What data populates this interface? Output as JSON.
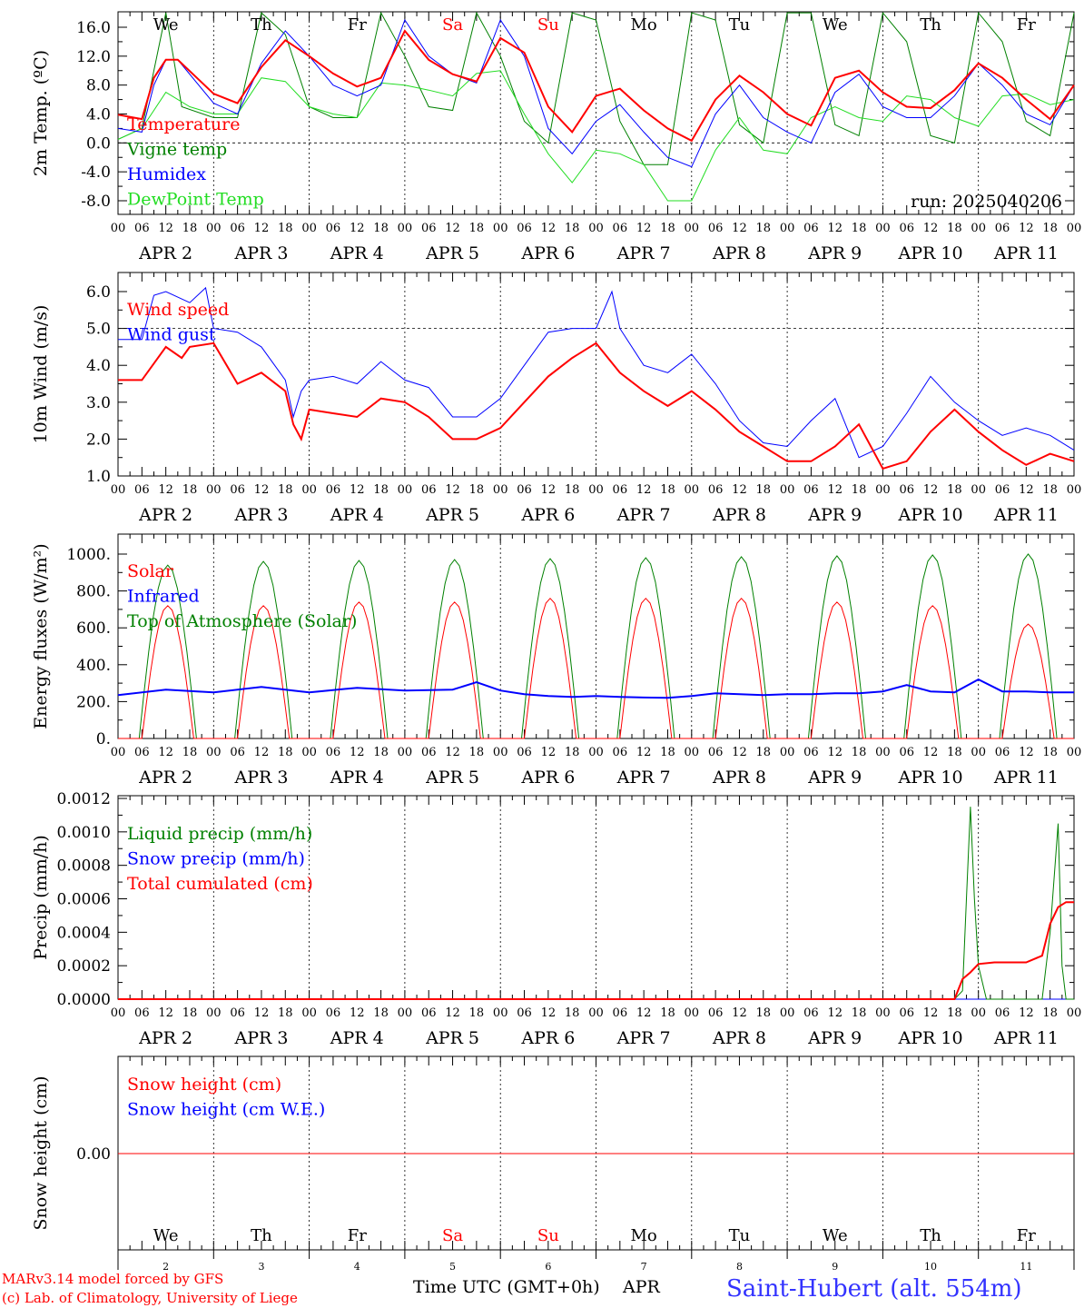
{
  "days": {
    "hour_ticks": [
      "00",
      "06",
      "12",
      "18"
    ],
    "final_tick": "00",
    "dates": [
      "APR  2",
      "APR  3",
      "APR  4",
      "APR  5",
      "APR  6",
      "APR  7",
      "APR  8",
      "APR  9",
      "APR 10",
      "APR 11"
    ],
    "weekdays": [
      "We",
      "Th",
      "Fr",
      "Sa",
      "Su",
      "Mo",
      "Tu",
      "We",
      "Th",
      "Fr"
    ],
    "weekend_flags": [
      false,
      false,
      false,
      true,
      true,
      false,
      false,
      false,
      false,
      false
    ],
    "day_numbers": [
      "2",
      "3",
      "4",
      "5",
      "6",
      "7",
      "8",
      "9",
      "10",
      "11"
    ]
  },
  "colors": {
    "red": "#ff0000",
    "green": "#008000",
    "blue": "#0000ff",
    "lightgreen": "#22dd22",
    "credit": "#ff0000",
    "station": "#3333ff"
  },
  "footer": {
    "credit_line1": "MARv3.14 model forced by GFS",
    "credit_line2": "(c) Lab. of Climatology, University of Liege",
    "xlabel": "Time UTC (GMT+0h)",
    "month": "APR",
    "station": "Saint-Hubert (alt. 554m)"
  },
  "chart_data": [
    {
      "type": "line",
      "id": "temp",
      "ylabel": "2m Temp. (ºC)",
      "ylim": [
        -11,
        18
      ],
      "yticks": [
        "16.0",
        "12.0",
        "8.0",
        "4.0",
        "0.0",
        "-4.0",
        "-8.0"
      ],
      "ytick_values": [
        16,
        12,
        8,
        4,
        0,
        -4,
        -8
      ],
      "refline": 0,
      "show_weekdays": true,
      "run": "run: 2025040206",
      "x_unit": "hours since APR 2 00 UTC",
      "series": [
        {
          "name": "Temperature",
          "color": "red",
          "width": 2,
          "x": [
            0,
            6,
            9,
            12,
            15,
            24,
            30,
            36,
            42,
            48,
            54,
            60,
            66,
            72,
            78,
            84,
            90,
            96,
            102,
            108,
            114,
            120,
            126,
            132,
            138,
            144,
            150,
            156,
            162,
            168,
            174,
            180,
            186,
            192,
            198,
            204,
            210,
            216,
            222,
            228,
            234,
            240
          ],
          "y": [
            3.9,
            3.3,
            9,
            11.5,
            11.5,
            6.8,
            5.5,
            10.5,
            14.2,
            12,
            9.6,
            7.8,
            9,
            15.5,
            11.5,
            9.5,
            8.5,
            14.5,
            12.5,
            5,
            1.5,
            6.5,
            7.5,
            4.5,
            2,
            0.3,
            6,
            9.3,
            7,
            4,
            2.4,
            9,
            10,
            7,
            5,
            4.8,
            7.3,
            11,
            9,
            6,
            3.3,
            8
          ]
        },
        {
          "name": "Vigne temp",
          "color": "green",
          "width": 1,
          "x": [
            0,
            6,
            12,
            16,
            24,
            30,
            36,
            42,
            48,
            54,
            60,
            66,
            72,
            78,
            84,
            90,
            96,
            102,
            108,
            114,
            120,
            126,
            132,
            138,
            144,
            150,
            156,
            162,
            168,
            174,
            180,
            186,
            192,
            198,
            204,
            210,
            216,
            222,
            228,
            234,
            240
          ],
          "y": [
            0.5,
            2,
            18,
            5,
            3.5,
            3.5,
            18,
            15,
            5,
            3.5,
            3.5,
            18,
            12,
            5,
            4.5,
            18,
            12,
            3,
            0,
            18,
            17,
            3,
            -3,
            -3,
            18,
            17,
            2.5,
            0,
            18,
            18,
            2.5,
            1,
            18,
            14,
            1,
            0,
            18,
            14,
            3,
            1,
            18
          ]
        },
        {
          "name": "Humidex",
          "color": "blue",
          "width": 1,
          "x": [
            0,
            6,
            9,
            12,
            15,
            24,
            30,
            36,
            42,
            48,
            54,
            60,
            66,
            72,
            78,
            84,
            90,
            96,
            102,
            108,
            114,
            120,
            126,
            132,
            138,
            144,
            150,
            156,
            162,
            168,
            174,
            180,
            186,
            192,
            198,
            204,
            210,
            216,
            222,
            228,
            234,
            240
          ],
          "y": [
            2,
            1.5,
            8,
            11.5,
            11.5,
            5.5,
            4,
            11,
            15.5,
            12,
            8,
            6.5,
            8,
            17,
            12,
            9.5,
            8.3,
            17,
            12,
            2,
            -1.5,
            3,
            5.3,
            1.5,
            -2,
            -3.3,
            4,
            8,
            3.5,
            1.5,
            0,
            7,
            9.5,
            5,
            3.5,
            3.5,
            6.5,
            11,
            8,
            4,
            2.5,
            8
          ]
        },
        {
          "name": "DewPoint Temp",
          "color": "lightgreen",
          "width": 1,
          "x": [
            0,
            6,
            12,
            18,
            24,
            30,
            36,
            42,
            48,
            54,
            60,
            66,
            72,
            78,
            84,
            90,
            96,
            102,
            108,
            114,
            120,
            126,
            132,
            138,
            144,
            150,
            156,
            162,
            168,
            174,
            180,
            186,
            192,
            198,
            204,
            210,
            216,
            222,
            228,
            234,
            240
          ],
          "y": [
            0.5,
            2,
            7,
            5,
            4,
            4,
            9,
            8.5,
            5,
            4,
            3.5,
            8.3,
            8,
            7.3,
            6.5,
            9.6,
            10,
            4,
            -1.5,
            -5.5,
            -1,
            -1.5,
            -3,
            -8,
            -8,
            -1,
            3.5,
            -1,
            -1.5,
            3.5,
            5,
            3.5,
            3,
            6.5,
            6,
            3.5,
            2.3,
            6.5,
            6.8,
            5.3,
            6
          ]
        }
      ]
    },
    {
      "type": "line",
      "id": "wind",
      "ylabel": "10m Wind (m/s)",
      "ylim": [
        1.0,
        6.5
      ],
      "yticks": [
        "6.0",
        "5.0",
        "4.0",
        "3.0",
        "2.0",
        "1.0"
      ],
      "ytick_values": [
        6,
        5,
        4,
        3,
        2,
        1
      ],
      "refline": 5,
      "show_weekdays": false,
      "series": [
        {
          "name": "Wind speed",
          "color": "red",
          "width": 2,
          "x": [
            0,
            3,
            6,
            12,
            16,
            18,
            24,
            30,
            36,
            42,
            44,
            46,
            48,
            54,
            60,
            66,
            72,
            78,
            84,
            90,
            96,
            102,
            108,
            114,
            120,
            126,
            132,
            138,
            144,
            150,
            156,
            162,
            168,
            174,
            180,
            186,
            192,
            198,
            204,
            210,
            216,
            222,
            228,
            234,
            240
          ],
          "y": [
            3.6,
            3.6,
            3.6,
            4.5,
            4.2,
            4.5,
            4.6,
            3.5,
            3.8,
            3.3,
            2.4,
            2.0,
            2.8,
            2.7,
            2.6,
            3.1,
            3.0,
            2.6,
            2.0,
            2.0,
            2.3,
            3.0,
            3.7,
            4.2,
            4.6,
            3.8,
            3.3,
            2.9,
            3.3,
            2.8,
            2.2,
            1.8,
            1.4,
            1.4,
            1.8,
            2.4,
            1.2,
            1.4,
            2.2,
            2.8,
            2.2,
            1.7,
            1.3,
            1.6,
            1.4
          ]
        },
        {
          "name": "Wind gust",
          "color": "blue",
          "width": 1,
          "x": [
            0,
            6,
            9,
            12,
            18,
            22,
            24,
            30,
            36,
            42,
            44,
            46,
            48,
            54,
            60,
            66,
            72,
            78,
            84,
            90,
            96,
            102,
            108,
            114,
            120,
            124,
            126,
            132,
            138,
            144,
            150,
            156,
            162,
            168,
            174,
            180,
            186,
            192,
            198,
            204,
            210,
            216,
            222,
            228,
            234,
            240
          ],
          "y": [
            4.7,
            4.7,
            5.9,
            6.0,
            5.7,
            6.1,
            5.0,
            4.9,
            4.5,
            3.6,
            2.6,
            3.3,
            3.6,
            3.7,
            3.5,
            4.1,
            3.6,
            3.4,
            2.6,
            2.6,
            3.1,
            4.0,
            4.9,
            5.0,
            5.0,
            6.0,
            5.0,
            4.0,
            3.8,
            4.3,
            3.5,
            2.5,
            1.9,
            1.8,
            2.5,
            3.1,
            1.5,
            1.8,
            2.7,
            3.7,
            3.0,
            2.5,
            2.1,
            2.3,
            2.1,
            1.7
          ]
        }
      ]
    },
    {
      "type": "line",
      "id": "flux",
      "ylabel": "Energy fluxes (W/m²)",
      "ylim": [
        0,
        1100
      ],
      "yticks": [
        "1000.",
        "800.",
        "600.",
        "400.",
        "200.",
        "0."
      ],
      "ytick_values": [
        1000,
        800,
        600,
        400,
        200,
        0
      ],
      "refline": null,
      "show_weekdays": false,
      "toa_peaks": [
        940,
        960,
        965,
        970,
        975,
        980,
        985,
        990,
        995,
        1000
      ],
      "solar_peaks": [
        720,
        720,
        740,
        740,
        760,
        760,
        760,
        740,
        720,
        620
      ],
      "series": [
        {
          "name": "Solar",
          "color": "red",
          "width": 1
        },
        {
          "name": "Infrared",
          "color": "blue",
          "width": 2,
          "x": [
            0,
            12,
            24,
            36,
            48,
            60,
            72,
            84,
            90,
            96,
            102,
            108,
            114,
            120,
            126,
            132,
            138,
            144,
            150,
            156,
            162,
            168,
            174,
            180,
            186,
            192,
            198,
            204,
            210,
            216,
            222,
            228,
            234,
            240
          ],
          "y": [
            235,
            265,
            250,
            280,
            250,
            275,
            260,
            265,
            305,
            260,
            240,
            230,
            225,
            230,
            225,
            222,
            220,
            230,
            245,
            240,
            235,
            240,
            240,
            245,
            245,
            255,
            290,
            255,
            250,
            320,
            255,
            255,
            250,
            250
          ]
        },
        {
          "name": "Top of Atmosphere (Solar)",
          "color": "green",
          "width": 1
        }
      ]
    },
    {
      "type": "line",
      "id": "precip",
      "ylabel": "Precip (mm/h)",
      "ylim": [
        0,
        0.0012
      ],
      "yticks": [
        "0.0012",
        "0.0010",
        "0.0008",
        "0.0006",
        "0.0004",
        "0.0002",
        "0.0000"
      ],
      "ytick_values": [
        0.0012,
        0.001,
        0.0008,
        0.0006,
        0.0004,
        0.0002,
        0
      ],
      "refline": null,
      "show_weekdays": false,
      "series": [
        {
          "name": "Liquid precip (mm/h)",
          "color": "green",
          "width": 1,
          "x": [
            0,
            210,
            212,
            213,
            214,
            215,
            216,
            217,
            218,
            220,
            222,
            232,
            234,
            236,
            237,
            238,
            239,
            240
          ],
          "y": [
            0,
            0,
            5e-05,
            0.0006,
            0.00115,
            0.0006,
            0.0002,
            0.0001,
            0,
            0,
            0,
            0,
            0.0004,
            0.00105,
            0.0002,
            0,
            0,
            0
          ]
        },
        {
          "name": "Snow precip (mm/h)",
          "color": "blue",
          "width": 1,
          "x": [
            0,
            240
          ],
          "y": [
            0,
            0
          ]
        },
        {
          "name": "Total cumulated (cm)",
          "color": "red",
          "width": 2,
          "x": [
            0,
            198,
            210,
            212,
            214,
            216,
            220,
            228,
            232,
            234,
            236,
            238,
            240
          ],
          "y": [
            0,
            0,
            0,
            0.00012,
            0.00016,
            0.00021,
            0.00022,
            0.00022,
            0.00026,
            0.00045,
            0.00055,
            0.00058,
            0.00058
          ]
        }
      ]
    },
    {
      "type": "line",
      "id": "snow",
      "ylabel": "Snow height (cm)",
      "ylim": [
        -1,
        1
      ],
      "yticks": [
        "0.00"
      ],
      "ytick_values": [
        0
      ],
      "refline": null,
      "show_weekdays": false,
      "series": [
        {
          "name": "Snow height (cm)",
          "color": "red",
          "width": 1,
          "x": [
            0,
            240
          ],
          "y": [
            0,
            0
          ]
        },
        {
          "name": "Snow height (cm W.E.)",
          "color": "blue",
          "width": 1,
          "x": [
            0,
            240
          ],
          "y": [
            0,
            0
          ]
        }
      ]
    }
  ]
}
